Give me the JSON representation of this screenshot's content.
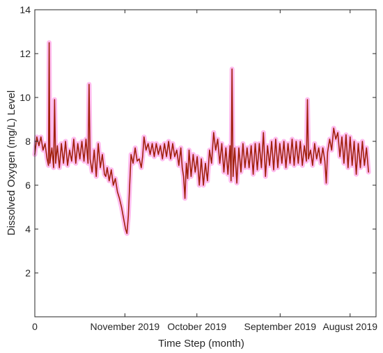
{
  "chart_data": {
    "type": "line",
    "title": "",
    "xlabel": "Time Step (month)",
    "ylabel": "Dissolved Oxygen (mg/L) Level",
    "ylim": [
      0,
      14
    ],
    "yticks": [
      2,
      4,
      6,
      8,
      10,
      12,
      14
    ],
    "xlim": [
      0,
      100
    ],
    "xticks": [
      {
        "x": 0,
        "label": "0"
      },
      {
        "x": 26.4,
        "label": "November 2019"
      },
      {
        "x": 47.5,
        "label": "October 2019"
      },
      {
        "x": 71.9,
        "label": "September 2019"
      },
      {
        "x": 92.4,
        "label": "August 2019"
      }
    ],
    "grid": false,
    "series": [
      {
        "color": "#A0200B",
        "glow_color": "#FF3FCF",
        "points": [
          [
            0.0,
            7.4
          ],
          [
            0.6,
            8.2
          ],
          [
            1.2,
            7.8
          ],
          [
            1.8,
            8.2
          ],
          [
            2.4,
            7.6
          ],
          [
            3.0,
            7.9
          ],
          [
            3.6,
            7.2
          ],
          [
            4.0,
            6.9
          ],
          [
            4.2,
            12.5
          ],
          [
            4.4,
            7.0
          ],
          [
            5.0,
            7.7
          ],
          [
            5.5,
            6.8
          ],
          [
            5.8,
            9.9
          ],
          [
            6.1,
            7.0
          ],
          [
            6.6,
            7.8
          ],
          [
            7.2,
            6.8
          ],
          [
            7.8,
            7.9
          ],
          [
            8.4,
            7.0
          ],
          [
            9.0,
            8.0
          ],
          [
            9.6,
            6.9
          ],
          [
            10.2,
            7.6
          ],
          [
            10.8,
            7.1
          ],
          [
            11.4,
            8.1
          ],
          [
            12.0,
            7.0
          ],
          [
            12.6,
            7.9
          ],
          [
            13.2,
            7.2
          ],
          [
            13.8,
            8.0
          ],
          [
            14.4,
            7.1
          ],
          [
            15.0,
            8.1
          ],
          [
            15.6,
            7.0
          ],
          [
            15.9,
            10.6
          ],
          [
            16.2,
            7.2
          ],
          [
            16.8,
            6.6
          ],
          [
            17.4,
            7.6
          ],
          [
            18.0,
            6.4
          ],
          [
            18.6,
            7.9
          ],
          [
            19.2,
            6.8
          ],
          [
            19.8,
            7.4
          ],
          [
            20.4,
            6.5
          ],
          [
            20.8,
            6.4
          ],
          [
            21.2,
            6.8
          ],
          [
            21.8,
            6.2
          ],
          [
            22.4,
            6.7
          ],
          [
            23.0,
            6.0
          ],
          [
            23.6,
            6.3
          ],
          [
            24.2,
            5.7
          ],
          [
            24.8,
            5.4
          ],
          [
            25.4,
            5.0
          ],
          [
            26.0,
            4.5
          ],
          [
            26.6,
            4.0
          ],
          [
            27.0,
            3.8
          ],
          [
            27.4,
            4.6
          ],
          [
            27.8,
            6.0
          ],
          [
            28.2,
            7.4
          ],
          [
            28.8,
            7.0
          ],
          [
            29.4,
            7.7
          ],
          [
            30.0,
            7.1
          ],
          [
            30.6,
            7.2
          ],
          [
            31.2,
            6.8
          ],
          [
            31.6,
            7.3
          ],
          [
            32.0,
            8.2
          ],
          [
            32.6,
            7.6
          ],
          [
            33.2,
            7.9
          ],
          [
            33.8,
            7.4
          ],
          [
            34.4,
            7.9
          ],
          [
            35.0,
            7.3
          ],
          [
            35.6,
            7.9
          ],
          [
            36.2,
            7.4
          ],
          [
            36.8,
            7.8
          ],
          [
            37.4,
            7.2
          ],
          [
            38.0,
            7.9
          ],
          [
            38.6,
            7.3
          ],
          [
            39.2,
            8.0
          ],
          [
            39.8,
            7.2
          ],
          [
            40.4,
            7.9
          ],
          [
            41.0,
            7.3
          ],
          [
            41.6,
            7.6
          ],
          [
            42.2,
            6.9
          ],
          [
            42.8,
            7.7
          ],
          [
            43.2,
            6.8
          ],
          [
            43.6,
            6.4
          ],
          [
            44.0,
            5.4
          ],
          [
            44.4,
            7.0
          ],
          [
            44.8,
            6.3
          ],
          [
            45.2,
            7.6
          ],
          [
            45.8,
            6.4
          ],
          [
            46.4,
            7.4
          ],
          [
            47.0,
            6.6
          ],
          [
            47.6,
            7.3
          ],
          [
            48.2,
            6.0
          ],
          [
            48.8,
            7.2
          ],
          [
            49.4,
            6.0
          ],
          [
            50.0,
            7.0
          ],
          [
            50.6,
            6.2
          ],
          [
            51.2,
            7.6
          ],
          [
            51.8,
            7.0
          ],
          [
            52.4,
            8.4
          ],
          [
            53.0,
            7.6
          ],
          [
            53.6,
            8.1
          ],
          [
            54.2,
            7.0
          ],
          [
            54.8,
            7.9
          ],
          [
            55.4,
            6.6
          ],
          [
            56.0,
            7.7
          ],
          [
            56.6,
            6.5
          ],
          [
            57.2,
            7.8
          ],
          [
            57.5,
            6.2
          ],
          [
            57.8,
            11.3
          ],
          [
            58.1,
            6.4
          ],
          [
            58.6,
            7.7
          ],
          [
            59.2,
            6.1
          ],
          [
            59.8,
            7.7
          ],
          [
            60.4,
            6.6
          ],
          [
            61.0,
            7.9
          ],
          [
            61.6,
            6.8
          ],
          [
            62.2,
            7.7
          ],
          [
            62.8,
            6.8
          ],
          [
            63.4,
            7.8
          ],
          [
            64.0,
            6.5
          ],
          [
            64.6,
            7.9
          ],
          [
            65.2,
            6.7
          ],
          [
            65.8,
            7.9
          ],
          [
            66.4,
            6.8
          ],
          [
            67.0,
            8.4
          ],
          [
            67.6,
            6.4
          ],
          [
            68.2,
            7.8
          ],
          [
            68.8,
            6.9
          ],
          [
            69.4,
            8.0
          ],
          [
            70.0,
            6.7
          ],
          [
            70.6,
            8.1
          ],
          [
            71.2,
            6.8
          ],
          [
            71.8,
            7.9
          ],
          [
            72.4,
            7.0
          ],
          [
            73.0,
            8.0
          ],
          [
            73.6,
            6.8
          ],
          [
            74.2,
            7.9
          ],
          [
            74.8,
            7.0
          ],
          [
            75.4,
            8.1
          ],
          [
            76.0,
            6.9
          ],
          [
            76.6,
            8.0
          ],
          [
            77.2,
            7.0
          ],
          [
            77.8,
            8.0
          ],
          [
            78.4,
            6.9
          ],
          [
            79.0,
            7.8
          ],
          [
            79.6,
            7.1
          ],
          [
            79.9,
            9.9
          ],
          [
            80.2,
            7.2
          ],
          [
            80.8,
            7.6
          ],
          [
            81.4,
            6.9
          ],
          [
            82.0,
            7.9
          ],
          [
            82.6,
            7.2
          ],
          [
            83.2,
            7.7
          ],
          [
            83.8,
            7.0
          ],
          [
            84.4,
            7.7
          ],
          [
            85.0,
            7.1
          ],
          [
            85.4,
            6.1
          ],
          [
            85.8,
            7.5
          ],
          [
            86.4,
            8.1
          ],
          [
            87.0,
            7.6
          ],
          [
            87.6,
            8.6
          ],
          [
            88.2,
            8.1
          ],
          [
            88.8,
            8.4
          ],
          [
            89.4,
            7.3
          ],
          [
            90.0,
            8.2
          ],
          [
            90.6,
            7.0
          ],
          [
            91.2,
            8.3
          ],
          [
            91.8,
            6.8
          ],
          [
            92.4,
            8.2
          ],
          [
            93.0,
            6.9
          ],
          [
            93.6,
            8.0
          ],
          [
            94.2,
            6.5
          ],
          [
            94.8,
            7.9
          ],
          [
            95.4,
            6.8
          ],
          [
            96.0,
            8.0
          ],
          [
            96.6,
            6.9
          ],
          [
            97.2,
            7.7
          ],
          [
            97.8,
            6.6
          ]
        ]
      }
    ]
  }
}
